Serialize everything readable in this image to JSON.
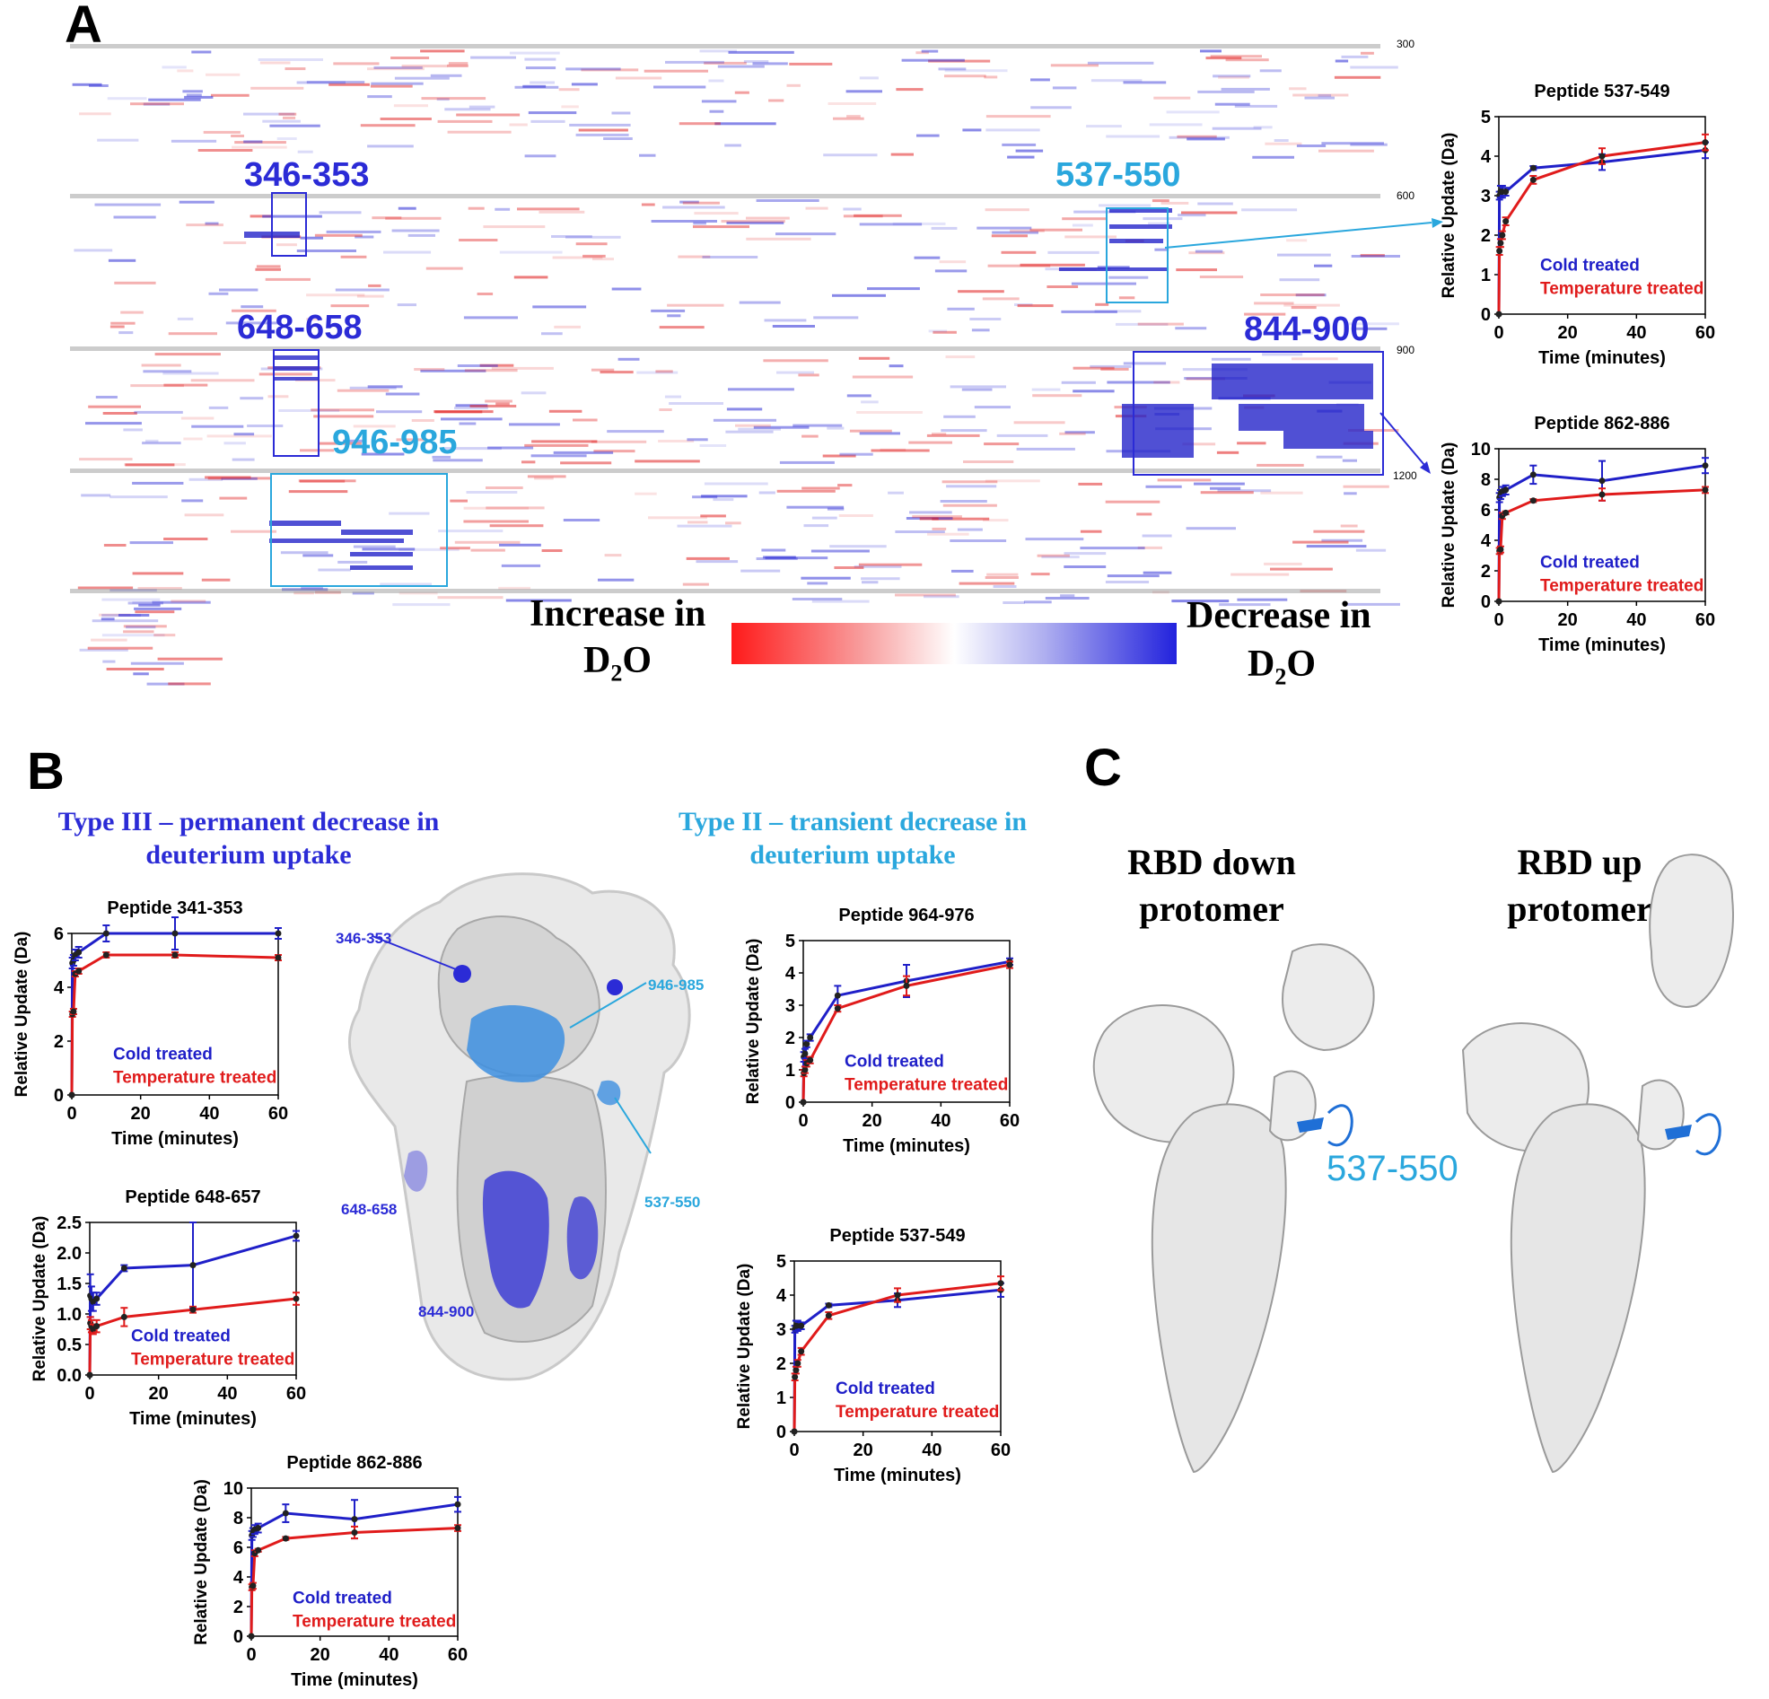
{
  "colors": {
    "cold": "#1f1fc8",
    "temp": "#e01b1b",
    "cyan": "#2aa7dd",
    "navy": "#2b2bd6"
  },
  "panels": {
    "a": "A",
    "b": "B",
    "c": "C"
  },
  "panel_a": {
    "row_numbers": [
      "300",
      "600",
      "900",
      "1200"
    ],
    "regions": [
      {
        "label": "346-353",
        "color": "#2b2bd6"
      },
      {
        "label": "537-550",
        "color": "#2aa7dd"
      },
      {
        "label": "648-658",
        "color": "#2b2bd6"
      },
      {
        "label": "844-900",
        "color": "#2b2bd6"
      },
      {
        "label": "946-985",
        "color": "#2aa7dd"
      }
    ],
    "legend": {
      "increase": "Increase in",
      "decrease": "Decrease in",
      "d2o_left": "D",
      "d2o_sub": "2",
      "d2o_o": "O"
    }
  },
  "panel_b": {
    "type3_line1": "Type III – permanent decrease in",
    "type3_line2": "deuterium uptake",
    "type2_line1": "Type II – transient decrease in",
    "type2_line2": "deuterium uptake",
    "structure_labels": [
      "346-353",
      "946-985",
      "537-550",
      "648-658",
      "844-900"
    ]
  },
  "panel_c": {
    "down_line1": "RBD down",
    "down_line2": "protomer",
    "up_line1": "RBD up",
    "up_line2": "protomer",
    "label": "537-550"
  },
  "chart_data": [
    {
      "type": "line",
      "title": "Peptide 537-549",
      "xlabel": "Time (minutes)",
      "ylabel": "Relative Update (Da)",
      "xlim": [
        0,
        60
      ],
      "ylim": [
        0,
        5
      ],
      "xticks": [
        0,
        20,
        40,
        60
      ],
      "yticks": [
        0,
        1,
        2,
        3,
        4,
        5
      ],
      "series": [
        {
          "name": "Cold treated",
          "color": "#1f1fc8",
          "x": [
            0,
            0.17,
            0.5,
            1,
            2,
            10,
            30,
            60
          ],
          "y": [
            0,
            3.0,
            3.1,
            3.1,
            3.1,
            3.7,
            3.85,
            4.15
          ],
          "err": [
            0,
            0.1,
            0.15,
            0.15,
            0.1,
            0.05,
            0.2,
            0.2
          ]
        },
        {
          "name": "Temperature treated",
          "color": "#e01b1b",
          "x": [
            0,
            0.17,
            0.5,
            1,
            2,
            10,
            30,
            60
          ],
          "y": [
            0,
            1.6,
            1.8,
            2.0,
            2.35,
            3.4,
            4.0,
            4.35
          ],
          "err": [
            0,
            0.1,
            0.1,
            0.1,
            0.1,
            0.1,
            0.2,
            0.2
          ]
        }
      ]
    },
    {
      "type": "line",
      "title": "Peptide 862-886",
      "xlabel": "Time (minutes)",
      "ylabel": "Relative Update (Da)",
      "xlim": [
        0,
        60
      ],
      "ylim": [
        0,
        10
      ],
      "xticks": [
        0,
        20,
        40,
        60
      ],
      "yticks": [
        0,
        2,
        4,
        6,
        8,
        10
      ],
      "series": [
        {
          "name": "Cold treated",
          "color": "#1f1fc8",
          "x": [
            0,
            0.17,
            0.5,
            1,
            2,
            10,
            30,
            60
          ],
          "y": [
            0,
            6.8,
            7.0,
            7.2,
            7.3,
            8.3,
            7.9,
            8.9
          ],
          "err": [
            0,
            0.3,
            0.3,
            0.3,
            0.3,
            0.6,
            1.3,
            0.5
          ]
        },
        {
          "name": "Temperature treated",
          "color": "#e01b1b",
          "x": [
            0,
            0.17,
            0.5,
            1,
            2,
            10,
            30,
            60
          ],
          "y": [
            0,
            3.3,
            3.4,
            5.6,
            5.8,
            6.6,
            7.0,
            7.3
          ],
          "err": [
            0,
            0.2,
            0.2,
            0.2,
            0.1,
            0.1,
            0.4,
            0.2
          ]
        }
      ]
    },
    {
      "type": "line",
      "title": "Peptide 341-353",
      "xlabel": "Time (minutes)",
      "ylabel": "Relative Update (Da)",
      "xlim": [
        0,
        60
      ],
      "ylim": [
        0,
        6
      ],
      "xticks": [
        0,
        20,
        40,
        60
      ],
      "yticks": [
        0,
        2,
        4,
        6
      ],
      "series": [
        {
          "name": "Cold treated",
          "color": "#1f1fc8",
          "x": [
            0,
            0.17,
            0.5,
            1,
            2,
            10,
            30,
            60
          ],
          "y": [
            0,
            4.9,
            5.0,
            5.2,
            5.3,
            6.0,
            6.0,
            6.0
          ],
          "err": [
            0,
            0.2,
            0.2,
            0.2,
            0.2,
            0.3,
            0.6,
            0.2
          ]
        },
        {
          "name": "Temperature treated",
          "color": "#e01b1b",
          "x": [
            0,
            0.17,
            0.5,
            1,
            2,
            10,
            30,
            60
          ],
          "y": [
            0,
            3.0,
            3.1,
            4.5,
            4.6,
            5.2,
            5.2,
            5.1
          ],
          "err": [
            0,
            0.1,
            0.1,
            0.1,
            0.1,
            0.1,
            0.1,
            0.1
          ]
        }
      ]
    },
    {
      "type": "line",
      "title": "Peptide 648-657",
      "xlabel": "Time (minutes)",
      "ylabel": "Relative Update (Da)",
      "xlim": [
        0,
        60
      ],
      "ylim": [
        0,
        2.5
      ],
      "xticks": [
        0,
        20,
        40,
        60
      ],
      "yticks": [
        0,
        0.5,
        1.0,
        1.5,
        2.0,
        2.5
      ],
      "series": [
        {
          "name": "Cold treated",
          "color": "#1f1fc8",
          "x": [
            0,
            0.17,
            0.5,
            1,
            2,
            10,
            30,
            60
          ],
          "y": [
            0,
            1.3,
            1.25,
            1.2,
            1.25,
            1.75,
            1.8,
            2.28
          ],
          "err": [
            0,
            0.35,
            0.2,
            0.15,
            0.1,
            0.05,
            0.7,
            0.08
          ]
        },
        {
          "name": "Temperature treated",
          "color": "#e01b1b",
          "x": [
            0,
            0.17,
            0.5,
            1,
            2,
            10,
            30,
            60
          ],
          "y": [
            0,
            0.85,
            0.8,
            0.75,
            0.8,
            0.95,
            1.07,
            1.25
          ],
          "err": [
            0,
            0.1,
            0.1,
            0.08,
            0.1,
            0.15,
            0.05,
            0.1
          ]
        }
      ]
    },
    {
      "type": "line",
      "title": "Peptide 862-886",
      "xlabel": "Time (minutes)",
      "ylabel": "Relative Update (Da)",
      "xlim": [
        0,
        60
      ],
      "ylim": [
        0,
        10
      ],
      "xticks": [
        0,
        20,
        40,
        60
      ],
      "yticks": [
        0,
        2,
        4,
        6,
        8,
        10
      ],
      "series": [
        {
          "name": "Cold treated",
          "color": "#1f1fc8",
          "x": [
            0,
            0.17,
            0.5,
            1,
            2,
            10,
            30,
            60
          ],
          "y": [
            0,
            6.8,
            7.0,
            7.2,
            7.3,
            8.3,
            7.9,
            8.9
          ],
          "err": [
            0,
            0.3,
            0.3,
            0.3,
            0.3,
            0.6,
            1.3,
            0.5
          ]
        },
        {
          "name": "Temperature treated",
          "color": "#e01b1b",
          "x": [
            0,
            0.17,
            0.5,
            1,
            2,
            10,
            30,
            60
          ],
          "y": [
            0,
            3.3,
            3.4,
            5.6,
            5.8,
            6.6,
            7.0,
            7.3
          ],
          "err": [
            0,
            0.2,
            0.2,
            0.2,
            0.1,
            0.1,
            0.4,
            0.2
          ]
        }
      ]
    },
    {
      "type": "line",
      "title": "Peptide 964-976",
      "xlabel": "Time (minutes)",
      "ylabel": "Relative Update (Da)",
      "xlim": [
        0,
        60
      ],
      "ylim": [
        0,
        5
      ],
      "xticks": [
        0,
        20,
        40,
        60
      ],
      "yticks": [
        0,
        1,
        2,
        3,
        4,
        5
      ],
      "series": [
        {
          "name": "Cold treated",
          "color": "#1f1fc8",
          "x": [
            0,
            0.17,
            0.5,
            1,
            2,
            10,
            30,
            60
          ],
          "y": [
            0,
            1.4,
            1.5,
            1.8,
            2.0,
            3.3,
            3.75,
            4.35
          ],
          "err": [
            0,
            0.15,
            0.15,
            0.1,
            0.1,
            0.3,
            0.5,
            0.1
          ]
        },
        {
          "name": "Temperature treated",
          "color": "#e01b1b",
          "x": [
            0,
            0.17,
            0.5,
            1,
            2,
            10,
            30,
            60
          ],
          "y": [
            0,
            0.9,
            1.0,
            1.2,
            1.3,
            2.9,
            3.6,
            4.25
          ],
          "err": [
            0,
            0.1,
            0.1,
            0.1,
            0.1,
            0.1,
            0.3,
            0.1
          ]
        }
      ]
    },
    {
      "type": "line",
      "title": "Peptide 537-549",
      "xlabel": "Time (minutes)",
      "ylabel": "Relative Update (Da)",
      "xlim": [
        0,
        60
      ],
      "ylim": [
        0,
        5
      ],
      "xticks": [
        0,
        20,
        40,
        60
      ],
      "yticks": [
        0,
        1,
        2,
        3,
        4,
        5
      ],
      "series": [
        {
          "name": "Cold treated",
          "color": "#1f1fc8",
          "x": [
            0,
            0.17,
            0.5,
            1,
            2,
            10,
            30,
            60
          ],
          "y": [
            0,
            3.0,
            3.1,
            3.1,
            3.1,
            3.7,
            3.85,
            4.15
          ],
          "err": [
            0,
            0.1,
            0.15,
            0.15,
            0.1,
            0.05,
            0.2,
            0.2
          ]
        },
        {
          "name": "Temperature treated",
          "color": "#e01b1b",
          "x": [
            0,
            0.17,
            0.5,
            1,
            2,
            10,
            30,
            60
          ],
          "y": [
            0,
            1.6,
            1.8,
            2.0,
            2.35,
            3.4,
            4.0,
            4.35
          ],
          "err": [
            0,
            0.1,
            0.1,
            0.1,
            0.1,
            0.1,
            0.2,
            0.2
          ]
        }
      ]
    }
  ]
}
